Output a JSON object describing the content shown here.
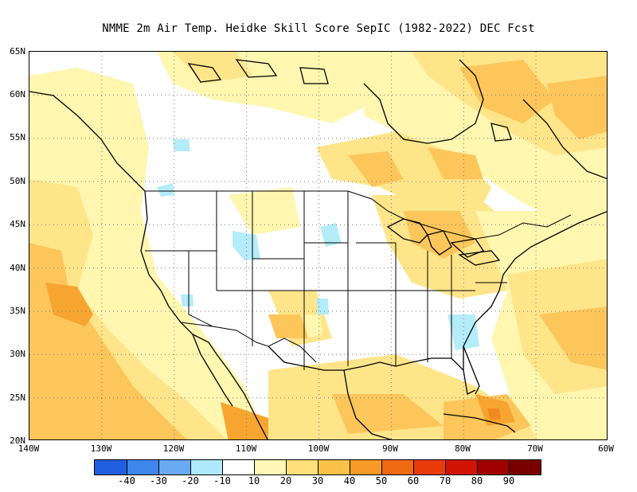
{
  "title": "NMME  2m Air Temp. Heidke Skill Score SepIC (1982-2022) DEC Fcst",
  "map": {
    "lat_labels": [
      "65N",
      "60N",
      "55N",
      "50N",
      "45N",
      "40N",
      "35N",
      "30N",
      "25N",
      "20N"
    ],
    "lon_labels": [
      "140W",
      "130W",
      "120W",
      "110W",
      "100W",
      "90W",
      "80W",
      "70W",
      "60W"
    ],
    "lat_range": [
      20,
      65
    ],
    "lon_range": [
      -140,
      -60
    ],
    "grid": "dotted"
  },
  "colorbar": {
    "levels": [
      "-40",
      "-30",
      "-20",
      "-10",
      "10",
      "20",
      "30",
      "40",
      "50",
      "60",
      "70",
      "80",
      "90"
    ],
    "colors": [
      "#1f5fe0",
      "#3f86ec",
      "#6aaaf2",
      "#aeeafc",
      "#ffffff",
      "#fff7b8",
      "#ffe07a",
      "#fbc24a",
      "#f79a28",
      "#f06a12",
      "#ea3c08",
      "#d21404",
      "#a00000",
      "#7a0000"
    ]
  },
  "colors": {
    "light_yellow": "#fff6b0",
    "yellow": "#ffe58a",
    "orange_light": "#fcc65a",
    "orange": "#f7a531",
    "orange_deep": "#f08a20",
    "light_blue": "#b5ecfa"
  }
}
